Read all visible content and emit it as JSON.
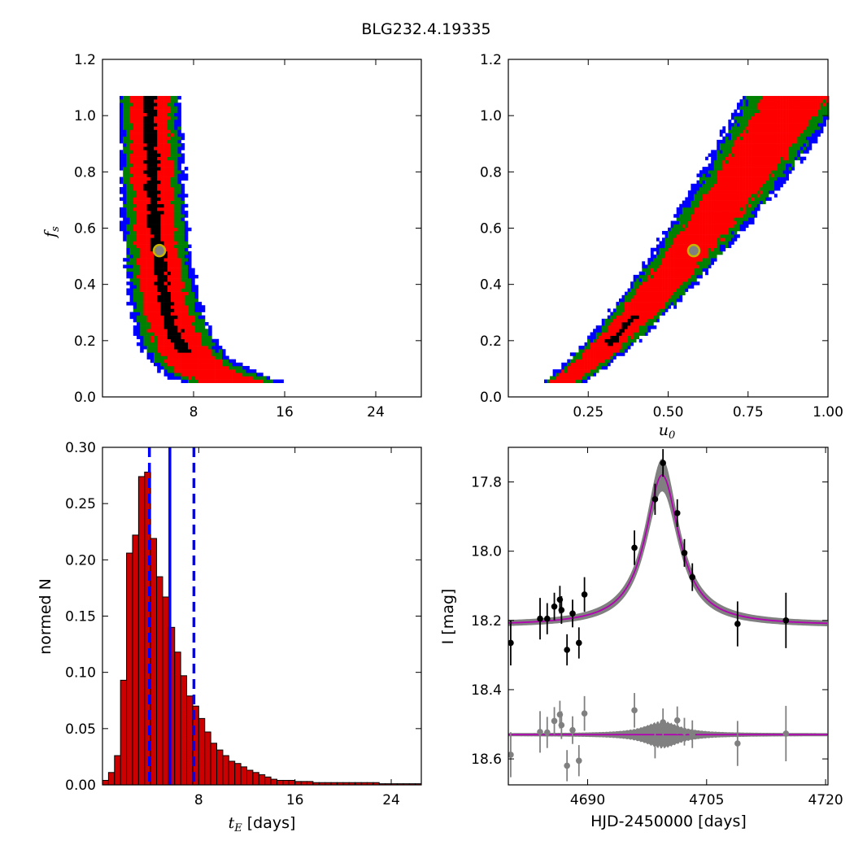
{
  "title": "BLG232.4.19335",
  "colors": {
    "black": "#000000",
    "red": "#ff0000",
    "green": "#008000",
    "blue": "#0000ff",
    "marker_face": "#808080",
    "marker_edge": "#c8b400",
    "hist_fill": "#cc0000",
    "vline": "#0000ff",
    "band": "#808080",
    "model": "#b300b3",
    "resid_points": "#808080"
  },
  "chart_data": [
    {
      "type": "heatmap",
      "panel": "top-left",
      "xlabel": "",
      "ylabel_main": "f",
      "ylabel_sub": "s",
      "xlim": [
        0,
        28
      ],
      "ylim": [
        0.0,
        1.2
      ],
      "xticks": [
        "8",
        "16",
        "24"
      ],
      "xtick_values": [
        8,
        16,
        24
      ],
      "yticks": [
        "0.0",
        "0.2",
        "0.4",
        "0.6",
        "0.8",
        "1.0",
        "1.2"
      ],
      "ytick_values": [
        0.0,
        0.2,
        0.4,
        0.6,
        0.8,
        1.0,
        1.2
      ],
      "levels": [
        "1-sigma (black)",
        "2-sigma (red)",
        "3-sigma (green)",
        "outer (blue)"
      ],
      "best_fit": {
        "x": 5.0,
        "y": 0.52
      }
    },
    {
      "type": "heatmap",
      "panel": "top-right",
      "xlabel_main": "u",
      "xlabel_sub": "0",
      "ylabel": "",
      "xlim": [
        0.0,
        1.0
      ],
      "ylim": [
        0.0,
        1.2
      ],
      "xticks": [
        "0.25",
        "0.50",
        "0.75",
        "1.00"
      ],
      "xtick_values": [
        0.25,
        0.5,
        0.75,
        1.0
      ],
      "yticks": [
        "0.0",
        "0.2",
        "0.4",
        "0.6",
        "0.8",
        "1.0",
        "1.2"
      ],
      "ytick_values": [
        0.0,
        0.2,
        0.4,
        0.6,
        0.8,
        1.0,
        1.2
      ],
      "best_fit": {
        "x": 0.58,
        "y": 0.52
      }
    },
    {
      "type": "bar",
      "panel": "bottom-left",
      "xlabel_main": "t",
      "xlabel_sub": "E",
      "xlabel_rest": " [days]",
      "ylabel": "normed N",
      "xlim": [
        0,
        26.5
      ],
      "ylim": [
        0.0,
        0.3
      ],
      "bin_start": 0.0,
      "bin_width": 0.5,
      "values": [
        0.004,
        0.011,
        0.026,
        0.093,
        0.206,
        0.222,
        0.274,
        0.278,
        0.219,
        0.185,
        0.167,
        0.14,
        0.118,
        0.097,
        0.079,
        0.07,
        0.059,
        0.047,
        0.037,
        0.031,
        0.026,
        0.021,
        0.019,
        0.016,
        0.013,
        0.011,
        0.009,
        0.007,
        0.005,
        0.004,
        0.004,
        0.004,
        0.003,
        0.003,
        0.003,
        0.002,
        0.002,
        0.002,
        0.002,
        0.002,
        0.002,
        0.002,
        0.002,
        0.002,
        0.002,
        0.002,
        0.001,
        0.001,
        0.001,
        0.001,
        0.001,
        0.001,
        0.001
      ],
      "xticks": [
        "8",
        "16",
        "24"
      ],
      "xtick_values": [
        8,
        16,
        24
      ],
      "yticks": [
        "0.00",
        "0.05",
        "0.10",
        "0.15",
        "0.20",
        "0.25",
        "0.30"
      ],
      "ytick_values": [
        0.0,
        0.05,
        0.1,
        0.15,
        0.2,
        0.25,
        0.3
      ],
      "median": 5.6,
      "lower": 3.9,
      "upper": 7.6
    },
    {
      "type": "scatter",
      "panel": "bottom-right",
      "xlabel": "HJD-2450000 [days]",
      "ylabel": "I [mag]",
      "xlim": [
        4680.0,
        4720.3
      ],
      "ylim": [
        18.675,
        17.7
      ],
      "y_inverted": true,
      "xticks": [
        "4690",
        "4705",
        "4720"
      ],
      "xtick_values": [
        4690,
        4705,
        4720
      ],
      "yticks": [
        "17.8",
        "18.0",
        "18.2",
        "18.4",
        "18.6"
      ],
      "ytick_values": [
        17.8,
        18.0,
        18.2,
        18.4,
        18.6
      ],
      "model": {
        "t0": 4699.4,
        "baseline": 18.215,
        "peak": 17.78,
        "width": 2.6
      },
      "residual_baseline": 18.53,
      "points": [
        {
          "x": 4680.3,
          "y": 18.265,
          "err": 0.065
        },
        {
          "x": 4684.0,
          "y": 18.195,
          "err": 0.06
        },
        {
          "x": 4684.9,
          "y": 18.195,
          "err": 0.045
        },
        {
          "x": 4685.8,
          "y": 18.16,
          "err": 0.04
        },
        {
          "x": 4686.5,
          "y": 18.14,
          "err": 0.04
        },
        {
          "x": 4686.7,
          "y": 18.17,
          "err": 0.04
        },
        {
          "x": 4687.4,
          "y": 18.285,
          "err": 0.045
        },
        {
          "x": 4688.1,
          "y": 18.18,
          "err": 0.04
        },
        {
          "x": 4688.9,
          "y": 18.265,
          "err": 0.045
        },
        {
          "x": 4689.6,
          "y": 18.125,
          "err": 0.05
        },
        {
          "x": 4695.9,
          "y": 17.99,
          "err": 0.05
        },
        {
          "x": 4698.5,
          "y": 17.85,
          "err": 0.045
        },
        {
          "x": 4699.5,
          "y": 17.745,
          "err": 0.04
        },
        {
          "x": 4701.3,
          "y": 17.89,
          "err": 0.04
        },
        {
          "x": 4702.2,
          "y": 18.005,
          "err": 0.04
        },
        {
          "x": 4703.2,
          "y": 18.075,
          "err": 0.04
        },
        {
          "x": 4708.9,
          "y": 18.21,
          "err": 0.065
        },
        {
          "x": 4715.0,
          "y": 18.2,
          "err": 0.08
        }
      ]
    }
  ]
}
